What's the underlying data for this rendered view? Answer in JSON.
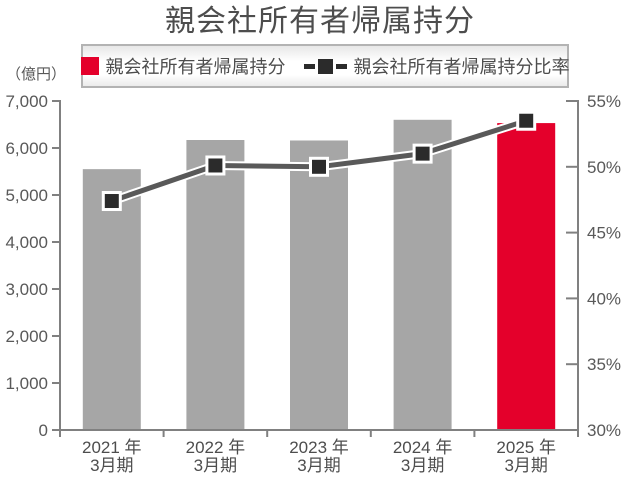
{
  "title": "親会社所有者帰属持分",
  "y_axis_unit": "（億円）",
  "legend": {
    "bar_label": "親会社所有者帰属持分",
    "line_label": "親会社所有者帰属持分比率"
  },
  "colors": {
    "bar_default": "#a6a6a6",
    "bar_highlight": "#e4002b",
    "line": "#595959",
    "line_casing": "#ffffff",
    "marker": "#2b2b2b",
    "axis": "#808080",
    "title_text": "#4d4d4d",
    "tick_text": "#595959"
  },
  "chart_data": {
    "type": "bar",
    "title": "親会社所有者帰属持分",
    "grid": false,
    "legend_position": "top",
    "categories": [
      [
        "2021 年",
        "3月期"
      ],
      [
        "2022 年",
        "3月期"
      ],
      [
        "2023 年",
        "3月期"
      ],
      [
        "2024 年",
        "3月期"
      ],
      [
        "2025 年",
        "3月期"
      ]
    ],
    "series": [
      {
        "name": "親会社所有者帰属持分",
        "type": "bar",
        "axis": "left",
        "unit": "億円",
        "values": [
          5550,
          6170,
          6160,
          6600,
          6530
        ],
        "colors": [
          "#a6a6a6",
          "#a6a6a6",
          "#a6a6a6",
          "#a6a6a6",
          "#e4002b"
        ]
      },
      {
        "name": "親会社所有者帰属持分比率",
        "type": "line",
        "axis": "right",
        "unit": "%",
        "values": [
          47.4,
          50.1,
          50.0,
          51.0,
          53.5
        ]
      }
    ],
    "left_axis": {
      "label": "（億円）",
      "min": 0,
      "max": 7000,
      "step": 1000,
      "tick_labels": [
        "0",
        "1,000",
        "2,000",
        "3,000",
        "4,000",
        "5,000",
        "6,000",
        "7,000"
      ]
    },
    "right_axis": {
      "min": 30,
      "max": 55,
      "step": 5,
      "tick_labels": [
        "30%",
        "35%",
        "40%",
        "45%",
        "50%",
        "55%"
      ]
    }
  }
}
